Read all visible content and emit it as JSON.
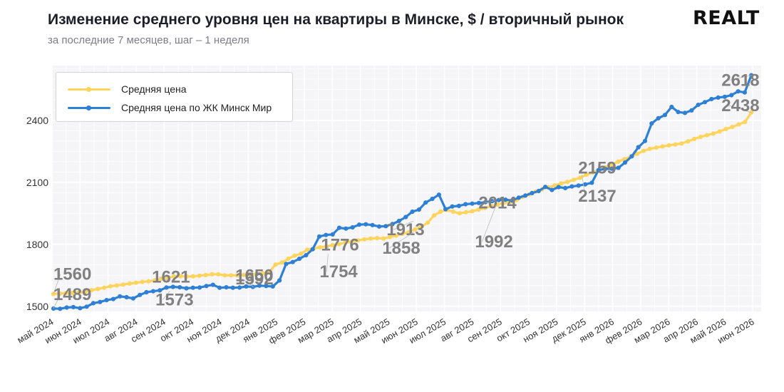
{
  "header": {
    "title": "Изменение среднего уровня цен на квартиры в Минске, $ / вторичный рынок",
    "subtitle": "за последние 7 месяцев, шаг – 1 неделя",
    "logo_text": "REALT"
  },
  "chart_data": {
    "type": "line",
    "title": "Изменение среднего уровня цен на квартиры в Минске, $ / вторичный рынок",
    "subtitle": "за последние 7 месяцев, шаг – 1 неделя",
    "xlabel": "",
    "ylabel": "",
    "ylim": [
      1475,
      2665
    ],
    "yticks": [
      1500,
      1800,
      2100,
      2400
    ],
    "ytick_labels": [
      "1500",
      "1800",
      "2100",
      "2400"
    ],
    "xlim": [
      0,
      25.3
    ],
    "xticks": [
      "май 2024",
      "июн 2024",
      "июл 2024",
      "авг 2024",
      "сен 2024",
      "окт 2024",
      "ноя 2024",
      "дек 2024",
      "янв 2025",
      "фев 2025",
      "мар 2025",
      "апр 2025",
      "май 2025",
      "июн 2025",
      "июл 2025",
      "авг 2025",
      "сен 2025",
      "окт 2025",
      "ноя 2025",
      "дек 2025",
      "янв 2026",
      "фев 2026",
      "мар 2026",
      "апр 2026",
      "май 2026",
      "июн 2026"
    ],
    "grid": true,
    "legend_position": "top-left",
    "series": [
      {
        "name": "Средняя цена",
        "color": "#FFD45C",
        "values": [
          1560,
          1562,
          1564,
          1565,
          1566,
          1570,
          1578,
          1584,
          1590,
          1597,
          1601,
          1605,
          1610,
          1614,
          1618,
          1621,
          1626,
          1633,
          1638,
          1644,
          1646,
          1644,
          1645,
          1648,
          1651,
          1655,
          1655,
          1650,
          1650,
          1650,
          1652,
          1654,
          1656,
          1660,
          1665,
          1702,
          1712,
          1730,
          1745,
          1754,
          1774,
          1780,
          1785,
          1790,
          1796,
          1801,
          1808,
          1813,
          1819,
          1824,
          1828,
          1830,
          1828,
          1835,
          1842,
          1851,
          1858,
          1872,
          1885,
          1905,
          1940,
          1958,
          1967,
          1958,
          1950,
          1955,
          1960,
          1968,
          1976,
          1985,
          1992,
          2000,
          2005,
          2014,
          2030,
          2042,
          2055,
          2066,
          2076,
          2085,
          2094,
          2102,
          2112,
          2122,
          2137,
          2148,
          2160,
          2172,
          2185,
          2200,
          2212,
          2225,
          2238,
          2252,
          2262,
          2268,
          2274,
          2279,
          2283,
          2288,
          2298,
          2310,
          2320,
          2328,
          2336,
          2346,
          2358,
          2368,
          2380,
          2392,
          2438
        ]
      },
      {
        "name": "Средняя цена по ЖК Минск Мир",
        "color": "#2E7FD6",
        "values": [
          1489,
          1488,
          1494,
          1496,
          1491,
          1498,
          1515,
          1521,
          1530,
          1535,
          1548,
          1544,
          1538,
          1555,
          1568,
          1573,
          1577,
          1591,
          1594,
          1592,
          1587,
          1590,
          1591,
          1598,
          1604,
          1590,
          1592,
          1590,
          1591,
          1596,
          1594,
          1600,
          1598,
          1596,
          1625,
          1705,
          1714,
          1730,
          1747,
          1776,
          1838,
          1845,
          1848,
          1880,
          1876,
          1882,
          1895,
          1897,
          1893,
          1886,
          1888,
          1898,
          1913,
          1932,
          1958,
          1968,
          2002,
          2020,
          2040,
          1970,
          1983,
          1986,
          1994,
          1997,
          2000,
          2004,
          2009,
          2014,
          2016,
          2012,
          2026,
          2036,
          2048,
          2058,
          2078,
          2063,
          2077,
          2072,
          2080,
          2084,
          2090,
          2098,
          2159,
          2165,
          2166,
          2170,
          2196,
          2226,
          2270,
          2300,
          2385,
          2410,
          2426,
          2465,
          2440,
          2436,
          2448,
          2475,
          2488,
          2503,
          2510,
          2514,
          2522,
          2540,
          2535,
          2618
        ]
      }
    ],
    "annotations": [
      {
        "text": "1560",
        "series": 0,
        "x": 0.05,
        "y": 1560
      },
      {
        "text": "1489",
        "series": 1,
        "x": 0.05,
        "y": 1489
      },
      {
        "text": "1621",
        "series": 0,
        "x": 4.2,
        "y": 1621
      },
      {
        "text": "1573",
        "series": 1,
        "x": 4.2,
        "y": 1573
      },
      {
        "text": "1650",
        "series": 0,
        "x": 7.2,
        "y": 1650
      },
      {
        "text": "1592",
        "series": 1,
        "x": 7.2,
        "y": 1592
      },
      {
        "text": "1776",
        "series": 1,
        "x": 9.85,
        "y": 1776
      },
      {
        "text": "1754",
        "series": 0,
        "x": 9.85,
        "y": 1754
      },
      {
        "text": "1913",
        "series": 1,
        "x": 12.9,
        "y": 1913
      },
      {
        "text": "1858",
        "series": 0,
        "x": 12.9,
        "y": 1858
      },
      {
        "text": "2014",
        "series": 1,
        "x": 15.85,
        "y": 2014
      },
      {
        "text": "1992",
        "series": 0,
        "x": 15.85,
        "y": 1992
      },
      {
        "text": "2159",
        "series": 1,
        "x": 18.9,
        "y": 2159
      },
      {
        "text": "2137",
        "series": 0,
        "x": 18.9,
        "y": 2137
      },
      {
        "text": "2618",
        "series": 1,
        "x": 24.95,
        "y": 2618
      },
      {
        "text": "2438",
        "series": 0,
        "x": 24.95,
        "y": 2438
      }
    ]
  }
}
